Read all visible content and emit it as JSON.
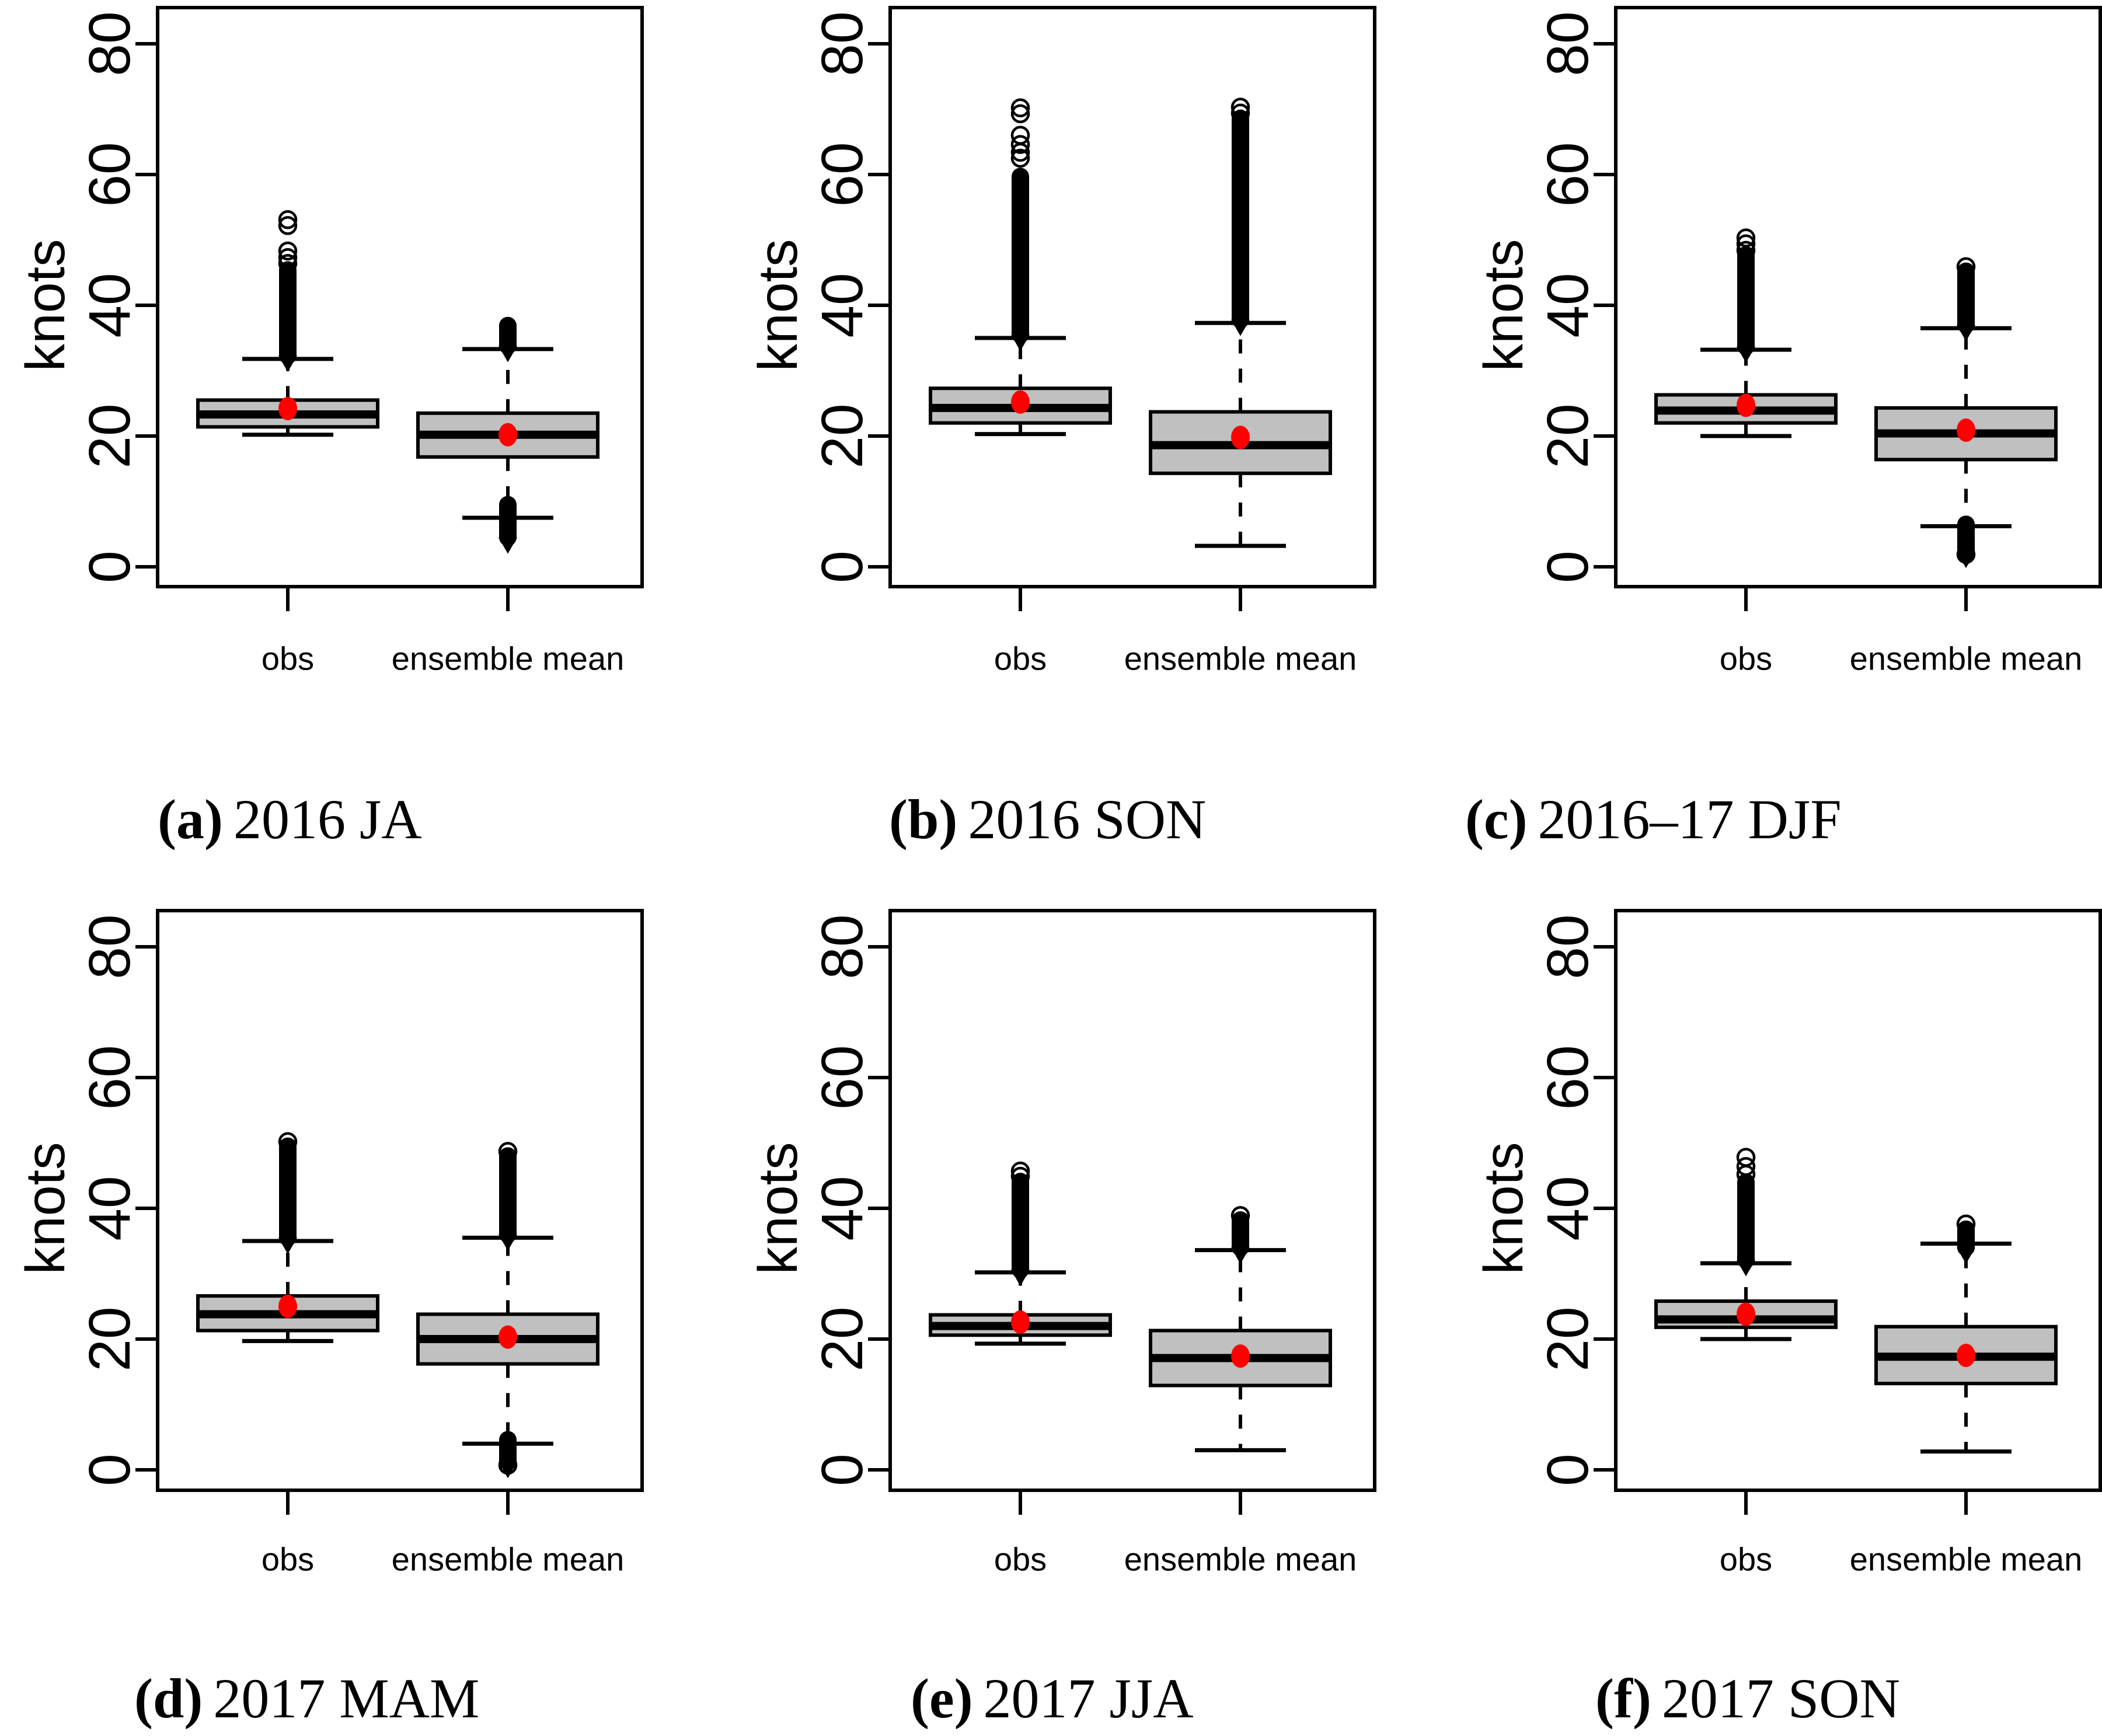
{
  "chart_data": {
    "type": "boxplot-grid",
    "layout": "2 rows x 3 columns",
    "ylabel": "knots",
    "yticks": [
      0,
      20,
      40,
      60,
      80
    ],
    "ylim": [
      -3,
      85.5
    ],
    "grid": "off",
    "categories": [
      "obs",
      "ensemble mean"
    ],
    "colors": {
      "box_fill": "#c0c0c0",
      "box_border": "#000000",
      "median": "#000000",
      "mean_dot": "#ff0000",
      "text": "#000000",
      "background": "#ffffff"
    },
    "panels": [
      {
        "key": "a",
        "caption_prefix": "(a)",
        "caption_title": "2016 JA",
        "boxes": [
          {
            "label": "obs",
            "whisker_low": 20.2,
            "q1": 21.4,
            "median": 23.3,
            "q3": 25.5,
            "whisker_high": 31.8,
            "mean": 24.2,
            "outlier_column_high": [
              32.3,
              45.4
            ],
            "outlier_circles_high": [
              46.4,
              47.3,
              48.3,
              52.2,
              53.1
            ],
            "outlier_column_low": null,
            "outlier_circles_low": []
          },
          {
            "label": "ensemble mean",
            "whisker_low": 7.5,
            "q1": 16.8,
            "median": 20.2,
            "q3": 23.5,
            "whisker_high": 33.3,
            "mean": 20.2,
            "outlier_column_high": [
              33.8,
              36.9
            ],
            "outlier_circles_high": [],
            "outlier_column_low": [
              4.5,
              9.5
            ],
            "outlier_circles_low": []
          }
        ]
      },
      {
        "key": "b",
        "caption_prefix": "(b)",
        "caption_title": "2016 SON",
        "boxes": [
          {
            "label": "obs",
            "whisker_low": 20.3,
            "q1": 22.0,
            "median": 24.3,
            "q3": 27.3,
            "whisker_high": 35.0,
            "mean": 25.2,
            "outlier_column_high": [
              35.5,
              59.7
            ],
            "outlier_circles_high": [
              62.5,
              63.4,
              64.6,
              66.0,
              69.3,
              70.2
            ],
            "outlier_column_low": null,
            "outlier_circles_low": []
          },
          {
            "label": "ensemble mean",
            "whisker_low": 3.2,
            "q1": 14.3,
            "median": 18.6,
            "q3": 23.7,
            "whisker_high": 37.3,
            "mean": 19.8,
            "outlier_column_high": [
              37.8,
              68.6
            ],
            "outlier_circles_high": [
              69.4,
              70.3
            ],
            "outlier_column_low": null,
            "outlier_circles_low": []
          }
        ]
      },
      {
        "key": "c",
        "caption_prefix": "(c)",
        "caption_title": "2016–17 DJF",
        "boxes": [
          {
            "label": "obs",
            "whisker_low": 20.0,
            "q1": 22.0,
            "median": 23.9,
            "q3": 26.3,
            "whisker_high": 33.2,
            "mean": 24.7,
            "outlier_column_high": [
              33.7,
              47.7
            ],
            "outlier_circles_high": [
              48.4,
              49.4,
              50.3
            ],
            "outlier_column_low": null,
            "outlier_circles_low": []
          },
          {
            "label": "ensemble mean",
            "whisker_low": 6.2,
            "q1": 16.4,
            "median": 20.4,
            "q3": 24.3,
            "whisker_high": 36.5,
            "mean": 20.9,
            "outlier_column_high": [
              37.0,
              45.2
            ],
            "outlier_circles_high": [
              45.9
            ],
            "outlier_column_low": [
              2.3,
              6.5
            ],
            "outlier_circles_low": [
              1.9
            ]
          }
        ]
      },
      {
        "key": "d",
        "caption_prefix": "(d)",
        "caption_title": "2017 MAM",
        "boxes": [
          {
            "label": "obs",
            "whisker_low": 19.7,
            "q1": 21.3,
            "median": 23.8,
            "q3": 26.6,
            "whisker_high": 35.0,
            "mean": 25.0,
            "outlier_column_high": [
              35.5,
              49.5
            ],
            "outlier_circles_high": [
              50.2
            ],
            "outlier_column_low": null,
            "outlier_circles_low": []
          },
          {
            "label": "ensemble mean",
            "whisker_low": 4.0,
            "q1": 16.2,
            "median": 20.0,
            "q3": 23.8,
            "whisker_high": 35.5,
            "mean": 20.3,
            "outlier_column_high": [
              36.0,
              48.0
            ],
            "outlier_circles_high": [
              48.7
            ],
            "outlier_column_low": [
              1.2,
              4.6
            ],
            "outlier_circles_low": [
              0.7
            ]
          }
        ]
      },
      {
        "key": "e",
        "caption_prefix": "(e)",
        "caption_title": "2017 JJA",
        "boxes": [
          {
            "label": "obs",
            "whisker_low": 19.3,
            "q1": 20.6,
            "median": 22.0,
            "q3": 23.7,
            "whisker_high": 30.2,
            "mean": 22.6,
            "outlier_column_high": [
              30.6,
              44.1
            ],
            "outlier_circles_high": [
              44.9,
              45.7
            ],
            "outlier_column_low": null,
            "outlier_circles_low": []
          },
          {
            "label": "ensemble mean",
            "whisker_low": 3.0,
            "q1": 12.9,
            "median": 17.1,
            "q3": 21.3,
            "whisker_high": 33.6,
            "mean": 17.4,
            "outlier_column_high": [
              34.0,
              38.2
            ],
            "outlier_circles_high": [
              38.9
            ],
            "outlier_column_low": null,
            "outlier_circles_low": []
          }
        ]
      },
      {
        "key": "f",
        "caption_prefix": "(f)",
        "caption_title": "2017 SON",
        "boxes": [
          {
            "label": "obs",
            "whisker_low": 20.0,
            "q1": 21.8,
            "median": 23.0,
            "q3": 25.8,
            "whisker_high": 31.6,
            "mean": 23.8,
            "outlier_column_high": [
              32.1,
              44.0
            ],
            "outlier_circles_high": [
              45.2,
              46.4,
              47.8
            ],
            "outlier_column_low": null,
            "outlier_circles_low": []
          },
          {
            "label": "ensemble mean",
            "whisker_low": 2.8,
            "q1": 13.2,
            "median": 17.3,
            "q3": 21.9,
            "whisker_high": 34.6,
            "mean": 17.5,
            "outlier_column_high": [
              34.0,
              36.8
            ],
            "outlier_circles_high": [
              37.6
            ],
            "outlier_column_low": null,
            "outlier_circles_low": []
          }
        ]
      }
    ]
  }
}
